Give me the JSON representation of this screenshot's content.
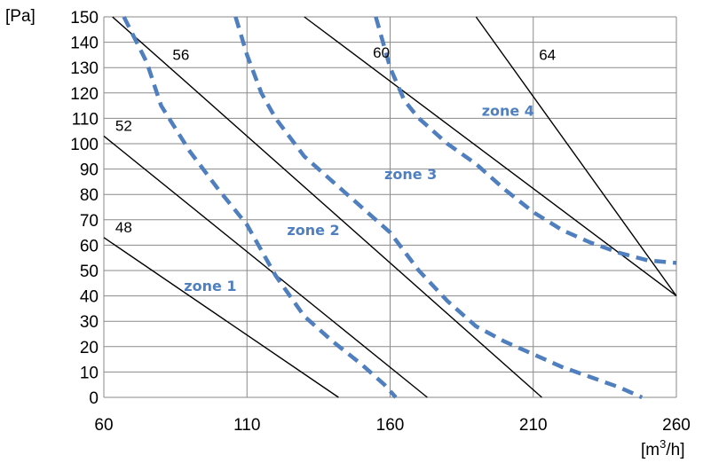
{
  "chart_data": {
    "type": "line",
    "xlim": [
      60,
      260
    ],
    "ylim": [
      0,
      150
    ],
    "x_ticks": [
      "60",
      "110",
      "160",
      "210",
      "260"
    ],
    "y_ticks": [
      "0",
      "10",
      "20",
      "30",
      "40",
      "50",
      "60",
      "70",
      "80",
      "90",
      "100",
      "110",
      "120",
      "130",
      "140",
      "150"
    ],
    "xlabel_prefix": "[m",
    "xlabel_sup": "3",
    "xlabel_suffix": "/h]",
    "ylabel": "[Pa]",
    "grid": true,
    "lines": [
      {
        "label": "48",
        "points": [
          [
            60,
            63
          ],
          [
            142,
            0
          ]
        ]
      },
      {
        "label": "52",
        "points": [
          [
            60,
            103
          ],
          [
            173,
            0
          ]
        ]
      },
      {
        "label": "56",
        "points": [
          [
            63,
            150
          ],
          [
            213,
            0
          ]
        ]
      },
      {
        "label": "60",
        "points": [
          [
            130,
            150
          ],
          [
            260,
            40
          ]
        ]
      },
      {
        "label": "64",
        "points": [
          [
            190,
            150
          ],
          [
            260,
            40
          ]
        ]
      }
    ],
    "zone_boundaries": [
      {
        "points": [
          [
            67,
            150
          ],
          [
            75,
            132
          ],
          [
            80,
            115
          ],
          [
            90,
            97
          ],
          [
            100,
            82
          ],
          [
            110,
            68
          ],
          [
            115,
            58
          ],
          [
            120,
            48
          ],
          [
            125,
            40
          ],
          [
            130,
            32
          ],
          [
            140,
            22
          ],
          [
            150,
            13
          ],
          [
            158,
            5
          ],
          [
            162,
            0
          ]
        ]
      },
      {
        "points": [
          [
            106,
            150
          ],
          [
            110,
            135
          ],
          [
            115,
            120
          ],
          [
            120,
            110
          ],
          [
            130,
            95
          ],
          [
            140,
            85
          ],
          [
            150,
            75
          ],
          [
            160,
            65
          ],
          [
            170,
            50
          ],
          [
            180,
            38
          ],
          [
            190,
            28
          ],
          [
            200,
            22
          ],
          [
            210,
            17
          ],
          [
            220,
            12
          ],
          [
            230,
            8
          ],
          [
            240,
            4
          ],
          [
            248,
            0
          ]
        ]
      },
      {
        "points": [
          [
            155,
            150
          ],
          [
            160,
            130
          ],
          [
            165,
            117
          ],
          [
            170,
            110
          ],
          [
            180,
            100
          ],
          [
            190,
            92
          ],
          [
            200,
            82
          ],
          [
            210,
            73
          ],
          [
            220,
            66
          ],
          [
            230,
            61
          ],
          [
            240,
            57
          ],
          [
            250,
            54
          ],
          [
            260,
            53
          ]
        ]
      }
    ],
    "line_labels": [
      {
        "text": "48",
        "x": 64,
        "y": 65
      },
      {
        "text": "52",
        "x": 64,
        "y": 105
      },
      {
        "text": "56",
        "x": 84,
        "y": 133
      },
      {
        "text": "60",
        "x": 154,
        "y": 134
      },
      {
        "text": "64",
        "x": 212,
        "y": 133
      }
    ],
    "zone_labels": [
      {
        "text": "zone 1",
        "x": 88,
        "y": 42
      },
      {
        "text": "zone 2",
        "x": 124,
        "y": 64
      },
      {
        "text": "zone 3",
        "x": 158,
        "y": 86
      },
      {
        "text": "zone 4",
        "x": 192,
        "y": 111
      }
    ],
    "colors": {
      "lines": "#000000",
      "zones": "#4f7fbe",
      "grid": "#8a8a8a"
    }
  }
}
